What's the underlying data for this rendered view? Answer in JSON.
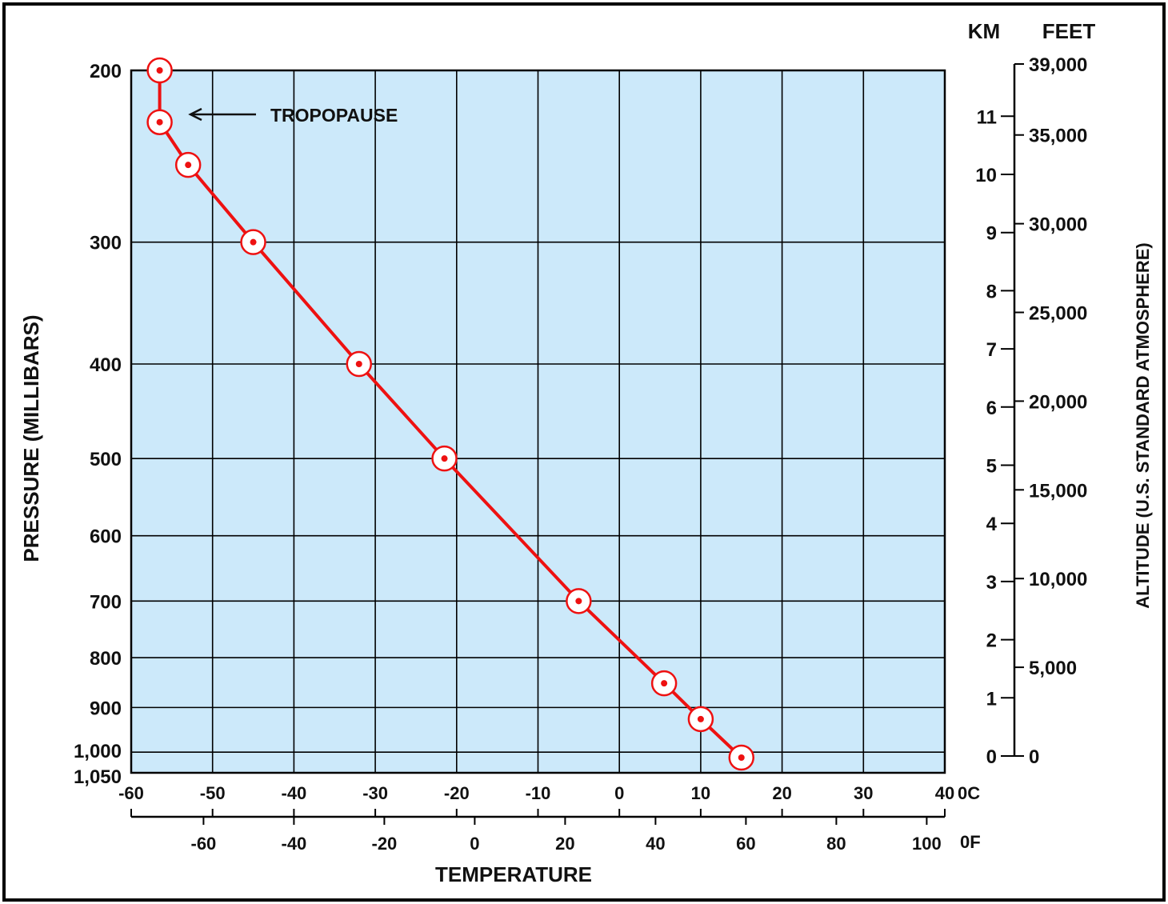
{
  "chart_data": {
    "type": "line",
    "xlabel": "TEMPERATURE",
    "ylabel": "PRESSURE (MILLIBARS)",
    "right_axis_label": "ALTITUDE (U.S. STANDARD ATMOSPHERE)",
    "x_unit_c": "0C",
    "x_unit_f": "0F",
    "km_header": "KM",
    "feet_header": "FEET",
    "xlim_c": [
      -60,
      40
    ],
    "x_ticks_c": [
      "-60",
      "-50",
      "-40",
      "-30",
      "-20",
      "-10",
      "0",
      "10",
      "20",
      "30",
      "40"
    ],
    "x_ticks_f": [
      "-60",
      "-40",
      "-20",
      "0",
      "20",
      "40",
      "60",
      "80",
      "100"
    ],
    "y_ticks_pressure": [
      "200",
      "300",
      "400",
      "500",
      "600",
      "700",
      "800",
      "900",
      "1,000",
      "1,050"
    ],
    "km_ticks": [
      "0",
      "1",
      "2",
      "3",
      "4",
      "5",
      "6",
      "7",
      "8",
      "9",
      "10",
      "11"
    ],
    "feet_ticks": [
      "0",
      "5,000",
      "10,000",
      "15,000",
      "20,000",
      "25,000",
      "30,000",
      "35,000",
      "39,000"
    ],
    "grid": true,
    "background_color": "#cce9fa",
    "line_color": "#ee1111",
    "annotation": "TROPOPAUSE",
    "series": [
      {
        "points": [
          {
            "temp_c": -56.5,
            "pressure_mb": 200
          },
          {
            "temp_c": -56.5,
            "pressure_mb": 226
          },
          {
            "temp_c": -53,
            "pressure_mb": 250
          },
          {
            "temp_c": -45,
            "pressure_mb": 300
          },
          {
            "temp_c": -32,
            "pressure_mb": 400
          },
          {
            "temp_c": -21.5,
            "pressure_mb": 500
          },
          {
            "temp_c": -5,
            "pressure_mb": 700
          },
          {
            "temp_c": 5.5,
            "pressure_mb": 850
          },
          {
            "temp_c": 10,
            "pressure_mb": 925
          },
          {
            "temp_c": 15,
            "pressure_mb": 1013
          }
        ]
      }
    ]
  }
}
